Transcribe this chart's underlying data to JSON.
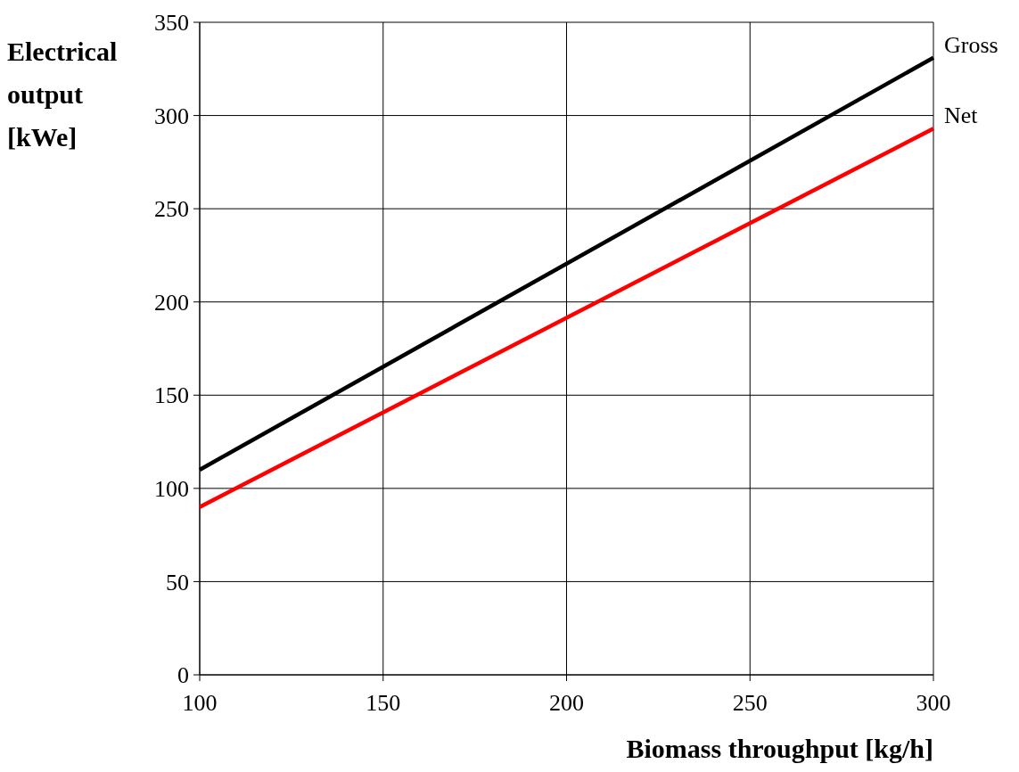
{
  "chart_data": {
    "type": "line",
    "xlabel": "Biomass throughput [kg/h]",
    "ylabel": "Electrical output [kWe]",
    "x": [
      100,
      300
    ],
    "series": [
      {
        "name": "Gross",
        "color": "#000000",
        "values": [
          110,
          331
        ]
      },
      {
        "name": "Net",
        "color": "#ff0000",
        "values": [
          90,
          293
        ]
      }
    ],
    "xlim": [
      100,
      300
    ],
    "xticks": [
      100,
      150,
      200,
      250,
      300
    ],
    "ylim": [
      0,
      350
    ],
    "yticks": [
      0,
      50,
      100,
      150,
      200,
      250,
      300,
      350
    ],
    "grid": true
  }
}
